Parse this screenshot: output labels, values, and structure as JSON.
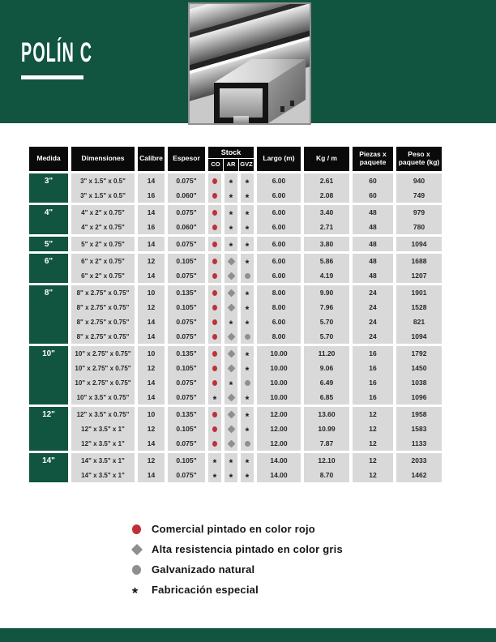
{
  "header": {
    "title": "POLÍN C"
  },
  "theme": {
    "green": "#11543F",
    "header_black": "#0A0A0A",
    "cell_gray": "#D9D9D9",
    "red_marker": "#BE3138",
    "gray_marker": "#8F8F8F"
  },
  "table": {
    "columns": [
      "Medida",
      "Dimensiones",
      "Calibre",
      "Espesor",
      "Stock",
      "Largo (m)",
      "Kg / m",
      "Piezas x paquete",
      "Peso x paquete (kg)"
    ],
    "stock_subcolumns": [
      "CO",
      "AR",
      "GVZ"
    ],
    "groups": [
      {
        "medida": "3\"",
        "rows": [
          {
            "dim": "3\" x 1.5\" x 0.5\"",
            "cal": "14",
            "esp": "0.075\"",
            "stock": [
              "red",
              "ast",
              "ast"
            ],
            "largo": "6.00",
            "kgm": "2.61",
            "piezas": "60",
            "peso": "940"
          },
          {
            "dim": "3\" x 1.5\" x 0.5\"",
            "cal": "16",
            "esp": "0.060\"",
            "stock": [
              "red",
              "ast",
              "ast"
            ],
            "largo": "6.00",
            "kgm": "2.08",
            "piezas": "60",
            "peso": "749"
          }
        ]
      },
      {
        "medida": "4\"",
        "rows": [
          {
            "dim": "4\" x 2\" x 0.75\"",
            "cal": "14",
            "esp": "0.075\"",
            "stock": [
              "red",
              "ast",
              "ast"
            ],
            "largo": "6.00",
            "kgm": "3.40",
            "piezas": "48",
            "peso": "979"
          },
          {
            "dim": "4\" x 2\" x 0.75\"",
            "cal": "16",
            "esp": "0.060\"",
            "stock": [
              "red",
              "ast",
              "ast"
            ],
            "largo": "6.00",
            "kgm": "2.71",
            "piezas": "48",
            "peso": "780"
          }
        ]
      },
      {
        "medida": "5\"",
        "rows": [
          {
            "dim": "5\" x 2\" x 0.75\"",
            "cal": "14",
            "esp": "0.075\"",
            "stock": [
              "red",
              "ast",
              "ast"
            ],
            "largo": "6.00",
            "kgm": "3.80",
            "piezas": "48",
            "peso": "1094"
          }
        ]
      },
      {
        "medida": "6\"",
        "rows": [
          {
            "dim": "6\" x 2\" x 0.75\"",
            "cal": "12",
            "esp": "0.105\"",
            "stock": [
              "red",
              "diamond",
              "ast"
            ],
            "largo": "6.00",
            "kgm": "5.86",
            "piezas": "48",
            "peso": "1688"
          },
          {
            "dim": "6\" x 2\" x 0.75\"",
            "cal": "14",
            "esp": "0.075\"",
            "stock": [
              "red",
              "diamond",
              "circle"
            ],
            "largo": "6.00",
            "kgm": "4.19",
            "piezas": "48",
            "peso": "1207"
          }
        ]
      },
      {
        "medida": "8\"",
        "rows": [
          {
            "dim": "8\" x 2.75\" x 0.75\"",
            "cal": "10",
            "esp": "0.135\"",
            "stock": [
              "red",
              "diamond",
              "ast"
            ],
            "largo": "8.00",
            "kgm": "9.90",
            "piezas": "24",
            "peso": "1901"
          },
          {
            "dim": "8\" x 2.75\" x 0.75\"",
            "cal": "12",
            "esp": "0.105\"",
            "stock": [
              "red",
              "diamond",
              "ast"
            ],
            "largo": "8.00",
            "kgm": "7.96",
            "piezas": "24",
            "peso": "1528"
          },
          {
            "dim": "8\" x 2.75\" x 0.75\"",
            "cal": "14",
            "esp": "0.075\"",
            "stock": [
              "red",
              "ast",
              "ast"
            ],
            "largo": "6.00",
            "kgm": "5.70",
            "piezas": "24",
            "peso": "821"
          },
          {
            "dim": "8\" x 2.75\" x 0.75\"",
            "cal": "14",
            "esp": "0.075\"",
            "stock": [
              "red",
              "diamond",
              "circle"
            ],
            "largo": "8.00",
            "kgm": "5.70",
            "piezas": "24",
            "peso": "1094"
          }
        ]
      },
      {
        "medida": "10\"",
        "rows": [
          {
            "dim": "10\" x 2.75\" x 0.75\"",
            "cal": "10",
            "esp": "0.135\"",
            "stock": [
              "red",
              "diamond",
              "ast"
            ],
            "largo": "10.00",
            "kgm": "11.20",
            "piezas": "16",
            "peso": "1792"
          },
          {
            "dim": "10\" x 2.75\" x 0.75\"",
            "cal": "12",
            "esp": "0.105\"",
            "stock": [
              "red",
              "diamond",
              "ast"
            ],
            "largo": "10.00",
            "kgm": "9.06",
            "piezas": "16",
            "peso": "1450"
          },
          {
            "dim": "10\" x 2.75\" x 0.75\"",
            "cal": "14",
            "esp": "0.075\"",
            "stock": [
              "red",
              "ast",
              "circle"
            ],
            "largo": "10.00",
            "kgm": "6.49",
            "piezas": "16",
            "peso": "1038"
          },
          {
            "dim": "10\" x 3.5\" x 0.75\"",
            "cal": "14",
            "esp": "0.075\"",
            "stock": [
              "ast",
              "diamond",
              "ast"
            ],
            "largo": "10.00",
            "kgm": "6.85",
            "piezas": "16",
            "peso": "1096"
          }
        ]
      },
      {
        "medida": "12\"",
        "rows": [
          {
            "dim": "12\" x 3.5\" x 0.75\"",
            "cal": "10",
            "esp": "0.135\"",
            "stock": [
              "red",
              "diamond",
              "ast"
            ],
            "largo": "12.00",
            "kgm": "13.60",
            "piezas": "12",
            "peso": "1958"
          },
          {
            "dim": "12\" x 3.5\" x 1\"",
            "cal": "12",
            "esp": "0.105\"",
            "stock": [
              "red",
              "diamond",
              "ast"
            ],
            "largo": "12.00",
            "kgm": "10.99",
            "piezas": "12",
            "peso": "1583"
          },
          {
            "dim": "12\" x 3.5\" x 1\"",
            "cal": "14",
            "esp": "0.075\"",
            "stock": [
              "red",
              "diamond",
              "circle"
            ],
            "largo": "12.00",
            "kgm": "7.87",
            "piezas": "12",
            "peso": "1133"
          }
        ]
      },
      {
        "medida": "14\"",
        "rows": [
          {
            "dim": "14\" x 3.5\" x 1\"",
            "cal": "12",
            "esp": "0.105\"",
            "stock": [
              "ast",
              "ast",
              "ast"
            ],
            "largo": "14.00",
            "kgm": "12.10",
            "piezas": "12",
            "peso": "2033"
          },
          {
            "dim": "14\" x 3.5\" x 1\"",
            "cal": "14",
            "esp": "0.075\"",
            "stock": [
              "ast",
              "ast",
              "ast"
            ],
            "largo": "14.00",
            "kgm": "8.70",
            "piezas": "12",
            "peso": "1462"
          }
        ]
      }
    ]
  },
  "legend": {
    "items": [
      {
        "marker": "red-circle",
        "label": "Comercial pintado en color rojo"
      },
      {
        "marker": "gray-diamond",
        "label": "Alta resistencia pintado en color gris"
      },
      {
        "marker": "gray-circle",
        "label": "Galvanizado natural"
      },
      {
        "marker": "asterisk",
        "label": "Fabricación especial"
      }
    ]
  }
}
